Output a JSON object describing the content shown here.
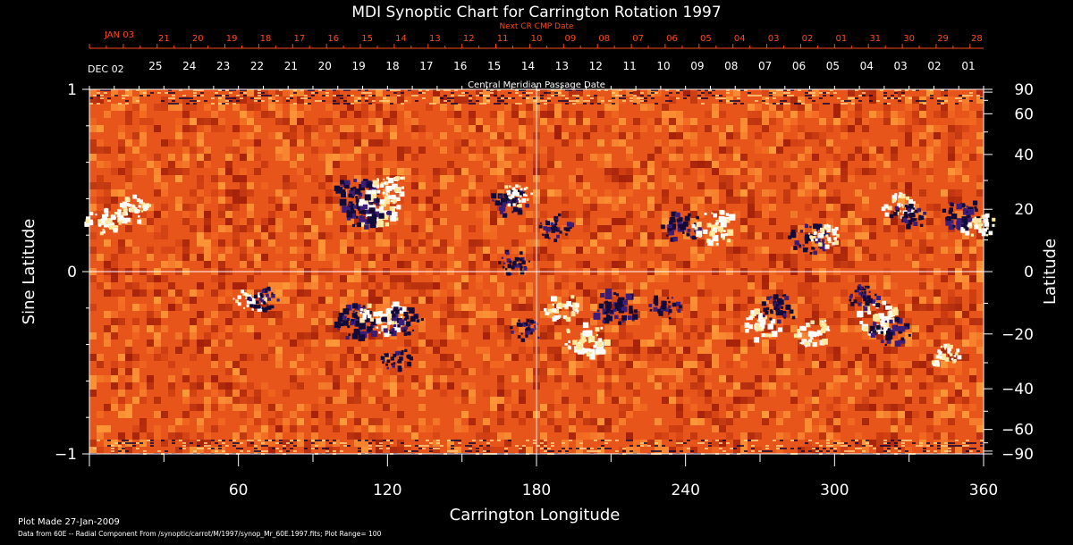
{
  "chart_data": {
    "type": "heatmap",
    "title": "MDI Synoptic Chart for Carrington Rotation 1997",
    "xlabel": "Carrington Longitude",
    "ylabel_left": "Sine Latitude",
    "ylabel_right": "Latitude",
    "xlim": [
      0,
      360
    ],
    "ylim": [
      -1,
      1
    ],
    "x_ticks": [
      60,
      120,
      180,
      240,
      300,
      360
    ],
    "y_ticks_left": [
      "1",
      "0",
      "−1"
    ],
    "y_ticks_right": [
      90,
      60,
      40,
      20,
      0,
      -20,
      -40,
      -60,
      -90
    ],
    "top_axis_label": "Central Meridian Passage Date",
    "top_axis_start_label": "DEC 02",
    "top_axis_dates": [
      "25",
      "24",
      "23",
      "22",
      "21",
      "20",
      "19",
      "18",
      "17",
      "16",
      "15",
      "14",
      "13",
      "12",
      "11",
      "10",
      "09",
      "08",
      "07",
      "06",
      "05",
      "04",
      "03",
      "02",
      "01"
    ],
    "next_cr_label": "Next CR CMP Date",
    "next_cr_start_label": "JAN 03",
    "next_cr_dates": [
      "21",
      "20",
      "19",
      "18",
      "17",
      "16",
      "15",
      "14",
      "13",
      "12",
      "11",
      "10",
      "09",
      "08",
      "07",
      "06",
      "05",
      "04",
      "03",
      "02",
      "01",
      "31",
      "30",
      "29",
      "28"
    ],
    "reference_lines": {
      "longitude": 180,
      "sine_latitude": 0
    },
    "colors": {
      "background": "#000000",
      "field_base": "#e8551a",
      "field_dark": "#a01e08",
      "field_bright": "#ff9c3a",
      "positive": "#ffffff",
      "negative": "#120a38",
      "date_accent": "#ff4a1a",
      "axes": "#ffffff"
    },
    "active_regions": [
      {
        "lon": 7,
        "sinlat": 0.28,
        "polarity": "positive",
        "strength": 0.8
      },
      {
        "lon": 18,
        "sinlat": 0.34,
        "polarity": "positive",
        "strength": 0.6
      },
      {
        "lon": 108,
        "sinlat": 0.42,
        "polarity": "negative",
        "strength": 1.0
      },
      {
        "lon": 116,
        "sinlat": 0.34,
        "polarity": "positive",
        "strength": 1.0
      },
      {
        "lon": 120,
        "sinlat": 0.46,
        "polarity": "positive",
        "strength": 0.8
      },
      {
        "lon": 112,
        "sinlat": 0.32,
        "polarity": "negative",
        "strength": 0.9
      },
      {
        "lon": 169,
        "sinlat": 0.38,
        "polarity": "negative",
        "strength": 0.7
      },
      {
        "lon": 172,
        "sinlat": 0.42,
        "polarity": "positive",
        "strength": 0.5
      },
      {
        "lon": 171,
        "sinlat": 0.05,
        "polarity": "negative",
        "strength": 0.5
      },
      {
        "lon": 188,
        "sinlat": 0.24,
        "polarity": "negative",
        "strength": 0.6
      },
      {
        "lon": 238,
        "sinlat": 0.24,
        "polarity": "negative",
        "strength": 0.9
      },
      {
        "lon": 252,
        "sinlat": 0.24,
        "polarity": "positive",
        "strength": 0.9
      },
      {
        "lon": 290,
        "sinlat": 0.18,
        "polarity": "negative",
        "strength": 0.8
      },
      {
        "lon": 296,
        "sinlat": 0.2,
        "polarity": "positive",
        "strength": 0.6
      },
      {
        "lon": 326,
        "sinlat": 0.36,
        "polarity": "positive",
        "strength": 0.6
      },
      {
        "lon": 330,
        "sinlat": 0.3,
        "polarity": "negative",
        "strength": 0.6
      },
      {
        "lon": 352,
        "sinlat": 0.3,
        "polarity": "negative",
        "strength": 0.9
      },
      {
        "lon": 358,
        "sinlat": 0.25,
        "polarity": "positive",
        "strength": 0.6
      },
      {
        "lon": 65,
        "sinlat": -0.15,
        "polarity": "positive",
        "strength": 0.6
      },
      {
        "lon": 70,
        "sinlat": -0.15,
        "polarity": "negative",
        "strength": 0.5
      },
      {
        "lon": 108,
        "sinlat": -0.28,
        "polarity": "negative",
        "strength": 1.0
      },
      {
        "lon": 118,
        "sinlat": -0.25,
        "polarity": "positive",
        "strength": 1.0
      },
      {
        "lon": 126,
        "sinlat": -0.28,
        "polarity": "negative",
        "strength": 0.8
      },
      {
        "lon": 124,
        "sinlat": -0.48,
        "polarity": "negative",
        "strength": 0.5
      },
      {
        "lon": 176,
        "sinlat": -0.32,
        "polarity": "negative",
        "strength": 0.5
      },
      {
        "lon": 191,
        "sinlat": -0.2,
        "polarity": "positive",
        "strength": 0.7
      },
      {
        "lon": 200,
        "sinlat": -0.38,
        "polarity": "positive",
        "strength": 1.0
      },
      {
        "lon": 212,
        "sinlat": -0.2,
        "polarity": "negative",
        "strength": 1.0
      },
      {
        "lon": 232,
        "sinlat": -0.2,
        "polarity": "negative",
        "strength": 0.6
      },
      {
        "lon": 270,
        "sinlat": -0.3,
        "polarity": "positive",
        "strength": 0.8
      },
      {
        "lon": 278,
        "sinlat": -0.2,
        "polarity": "negative",
        "strength": 0.7
      },
      {
        "lon": 292,
        "sinlat": -0.34,
        "polarity": "positive",
        "strength": 0.8
      },
      {
        "lon": 318,
        "sinlat": -0.26,
        "polarity": "positive",
        "strength": 0.9
      },
      {
        "lon": 322,
        "sinlat": -0.34,
        "polarity": "negative",
        "strength": 0.8
      },
      {
        "lon": 312,
        "sinlat": -0.14,
        "polarity": "negative",
        "strength": 0.6
      },
      {
        "lon": 344,
        "sinlat": -0.46,
        "polarity": "positive",
        "strength": 0.5
      }
    ]
  },
  "footer": {
    "plot_made": "Plot Made 27-Jan-2009",
    "data_from": "Data from 60E -- Radial Component From /synoptic/carrot/M/1997/synop_Mr_60E.1997.fits; Plot Range= 100"
  }
}
